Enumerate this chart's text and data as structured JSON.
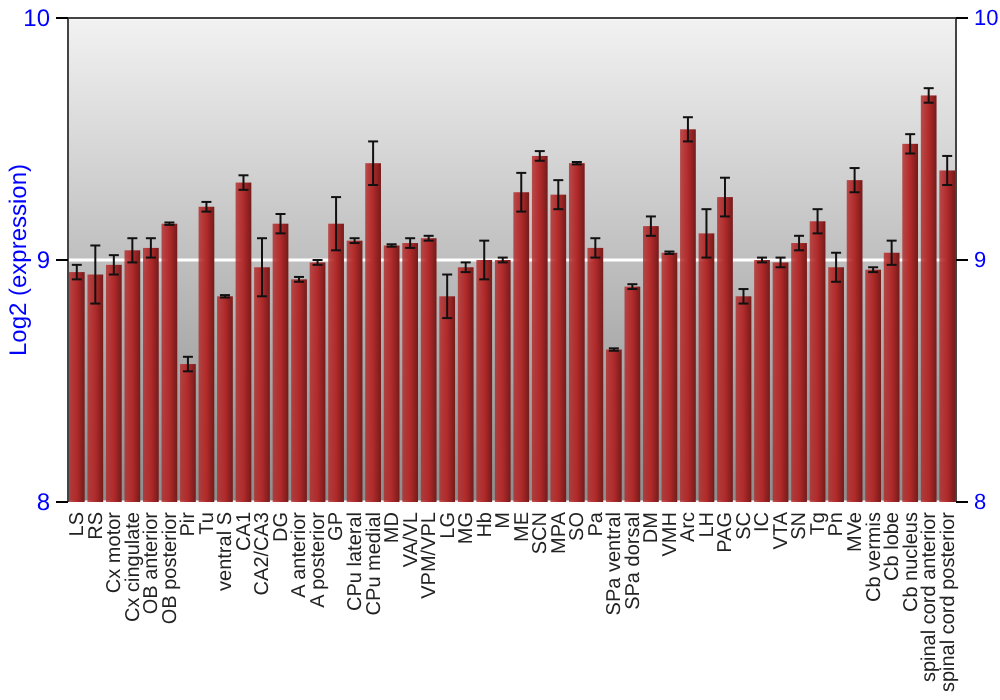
{
  "chart_data": {
    "type": "bar",
    "ylabel": "Log2 (expression)",
    "categories": [
      "LS",
      "RS",
      "Cx motor",
      "Cx cingulate",
      "OB anterior",
      "OB posterior",
      "Pir",
      "Tu",
      "ventral S",
      "CA1",
      "CA2/CA3",
      "DG",
      "A anterior",
      "A posterior",
      "GP",
      "CPu lateral",
      "CPu medial",
      "MD",
      "VA/VL",
      "VPM/VPL",
      "LG",
      "MG",
      "Hb",
      "M",
      "ME",
      "SCN",
      "MPA",
      "SO",
      "Pa",
      "SPa ventral",
      "SPa dorsal",
      "DM",
      "VMH",
      "Arc",
      "LH",
      "PAG",
      "SC",
      "IC",
      "VTA",
      "SN",
      "Tg",
      "Pn",
      "MVe",
      "Cb vermis",
      "Cb lobe",
      "Cb nucleus",
      "spinal cord anterior",
      "spinal cord posterior"
    ],
    "values": [
      8.95,
      8.94,
      8.98,
      9.04,
      9.05,
      9.15,
      8.57,
      9.22,
      8.85,
      9.32,
      8.97,
      9.15,
      8.92,
      8.99,
      9.15,
      9.08,
      9.4,
      9.06,
      9.07,
      9.09,
      8.85,
      8.97,
      9.0,
      9.0,
      9.28,
      9.43,
      9.27,
      9.4,
      9.05,
      8.63,
      8.89,
      9.14,
      9.03,
      9.54,
      9.11,
      9.26,
      8.85,
      9.0,
      8.99,
      9.07,
      9.16,
      8.97,
      9.33,
      8.96,
      9.03,
      9.48,
      9.68,
      9.37
    ],
    "errors": [
      0.03,
      0.12,
      0.04,
      0.05,
      0.04,
      0.005,
      0.03,
      0.02,
      0.005,
      0.03,
      0.12,
      0.04,
      0.01,
      0.01,
      0.11,
      0.01,
      0.09,
      0.005,
      0.02,
      0.01,
      0.09,
      0.02,
      0.08,
      0.01,
      0.08,
      0.02,
      0.06,
      0.005,
      0.04,
      0.005,
      0.01,
      0.04,
      0.005,
      0.05,
      0.1,
      0.08,
      0.03,
      0.01,
      0.02,
      0.03,
      0.05,
      0.06,
      0.05,
      0.01,
      0.05,
      0.04,
      0.03,
      0.06
    ],
    "color": "#b22a2a",
    "ylim": [
      8,
      10
    ],
    "yticks": [
      8,
      9,
      10
    ],
    "y2lim": [
      8,
      10
    ],
    "y2ticks": [
      8,
      9,
      10
    ],
    "grid": "y"
  }
}
